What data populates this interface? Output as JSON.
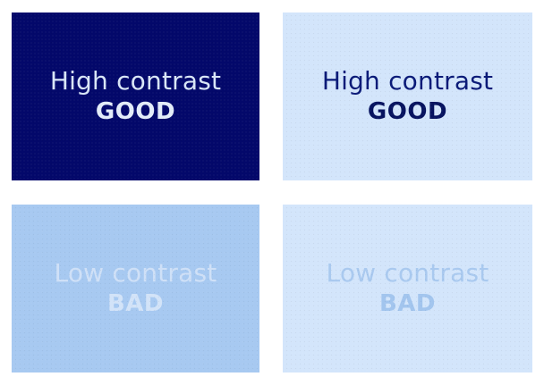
{
  "panels": [
    {
      "line1": "High contrast",
      "line2": "GOOD",
      "background": "#03086a",
      "line1_color": "#d9e6f7",
      "line2_color": "#e3ecf9"
    },
    {
      "line1": "High contrast",
      "line2": "GOOD",
      "background": "#d3e5fb",
      "line1_color": "#0a1a78",
      "line2_color": "#07135f"
    },
    {
      "line1": "Low contrast",
      "line2": "BAD",
      "background": "#a7c9f1",
      "line1_color": "#cfe0f7",
      "line2_color": "#d2e3f8"
    },
    {
      "line1": "Low contrast",
      "line2": "BAD",
      "background": "#d3e5fb",
      "line1_color": "#a9c9ef",
      "line2_color": "#a2c5ee"
    }
  ]
}
